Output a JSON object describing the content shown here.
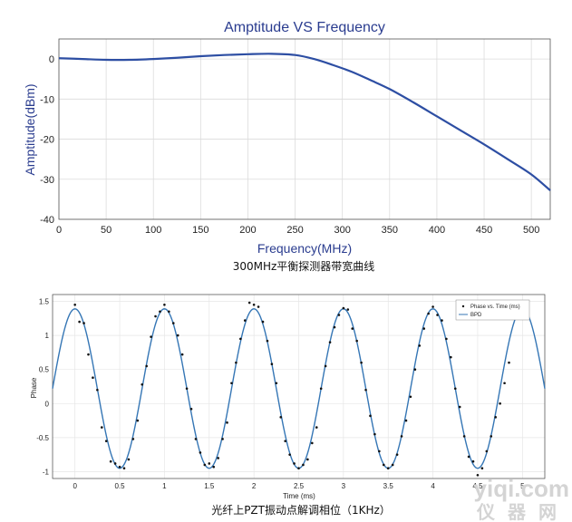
{
  "chart_data": [
    {
      "type": "line",
      "title": "Amptitude VS Frequency",
      "xlabel": "Frequency(MHz)",
      "ylabel": "Amptitude(dBm)",
      "xlim": [
        0,
        520
      ],
      "ylim": [
        -40,
        5
      ],
      "grid": true,
      "x_ticks": [
        "0",
        "50",
        "100",
        "150",
        "200",
        "250",
        "300",
        "350",
        "400",
        "450",
        "500"
      ],
      "y_ticks": [
        "0",
        "-10",
        "-20",
        "-30",
        "-40"
      ],
      "series": [
        {
          "color": "#2d4ea3",
          "x": [
            0,
            25,
            50,
            75,
            100,
            125,
            150,
            175,
            200,
            225,
            250,
            270,
            290,
            310,
            330,
            350,
            375,
            400,
            425,
            450,
            475,
            500,
            520
          ],
          "y": [
            0.2,
            0.0,
            -0.2,
            -0.2,
            0.0,
            0.3,
            0.7,
            1.0,
            1.2,
            1.3,
            1.0,
            0.0,
            -1.5,
            -3.2,
            -5.3,
            -7.5,
            -10.8,
            -14.3,
            -17.8,
            -21.3,
            -25.0,
            -28.8,
            -32.8
          ]
        }
      ],
      "caption": "300MHz平衡探测器带宽曲线"
    },
    {
      "type": "scatter",
      "xlabel": "Time (ms)",
      "ylabel": "Phase",
      "xlim": [
        -0.25,
        5.25
      ],
      "ylim": [
        -1.1,
        1.6
      ],
      "grid": true,
      "x_ticks": [
        "0",
        "0.5",
        "1",
        "1.5",
        "2",
        "2.5",
        "3",
        "3.5",
        "4",
        "4.5",
        "5"
      ],
      "y_ticks": [
        "1.5",
        "1",
        "0.5",
        "0",
        "-0.5",
        "-1"
      ],
      "legend": {
        "placement": "top-right",
        "entries": [
          "Phase vs. Time (ms)",
          "BPD"
        ]
      },
      "series": [
        {
          "name": "Phase vs. Time (ms)",
          "color": "#111111",
          "x": [
            0.0,
            0.05,
            0.1,
            0.15,
            0.2,
            0.25,
            0.3,
            0.35,
            0.4,
            0.45,
            0.5,
            0.55,
            0.6,
            0.65,
            0.7,
            0.75,
            0.8,
            0.85,
            0.9,
            0.95,
            1.0,
            1.05,
            1.1,
            1.15,
            1.2,
            1.25,
            1.3,
            1.35,
            1.4,
            1.45,
            1.5,
            1.55,
            1.6,
            1.65,
            1.7,
            1.75,
            1.8,
            1.85,
            1.9,
            1.95,
            2.0,
            2.05,
            2.1,
            2.15,
            2.2,
            2.25,
            2.3,
            2.35,
            2.4,
            2.45,
            2.5,
            2.55,
            2.6,
            2.65,
            2.7,
            2.75,
            2.8,
            2.85,
            2.9,
            2.95,
            3.0,
            3.05,
            3.1,
            3.15,
            3.2,
            3.25,
            3.3,
            3.35,
            3.4,
            3.45,
            3.5,
            3.55,
            3.6,
            3.65,
            3.7,
            3.75,
            3.8,
            3.85,
            3.9,
            3.95,
            4.0,
            4.05,
            4.1,
            4.15,
            4.2,
            4.25,
            4.3,
            4.35,
            4.4,
            4.45,
            4.5,
            4.55,
            4.6,
            4.65,
            4.7,
            4.75,
            4.8,
            4.85
          ],
          "y": [
            1.45,
            1.2,
            1.18,
            0.72,
            0.38,
            0.2,
            -0.35,
            -0.55,
            -0.85,
            -0.88,
            -0.93,
            -0.95,
            -0.82,
            -0.52,
            -0.25,
            0.28,
            0.55,
            0.98,
            1.28,
            1.35,
            1.45,
            1.35,
            1.18,
            1.0,
            0.72,
            0.22,
            -0.08,
            -0.52,
            -0.72,
            -0.9,
            -0.88,
            -0.93,
            -0.8,
            -0.52,
            -0.28,
            0.3,
            0.6,
            0.95,
            1.22,
            1.48,
            1.45,
            1.42,
            1.2,
            0.92,
            0.58,
            0.3,
            -0.2,
            -0.55,
            -0.75,
            -0.88,
            -0.95,
            -0.9,
            -0.82,
            -0.58,
            -0.35,
            0.22,
            0.55,
            0.9,
            1.12,
            1.3,
            1.4,
            1.38,
            1.1,
            0.92,
            0.6,
            0.2,
            -0.18,
            -0.45,
            -0.7,
            -0.9,
            -0.95,
            -0.9,
            -0.75,
            -0.48,
            -0.25,
            0.1,
            0.5,
            0.85,
            1.1,
            1.32,
            1.42,
            1.3,
            1.22,
            0.95,
            0.68,
            0.22,
            -0.05,
            -0.48,
            -0.78,
            -0.85,
            -1.05,
            -0.95,
            -0.7,
            -0.48,
            -0.2,
            0.0,
            0.3,
            0.6
          ]
        },
        {
          "name": "BPD",
          "color": "#3576b5",
          "amplitude": 1.17,
          "offset": 0.22,
          "period_ms": 1.0,
          "peak_at_ms": 0.0
        }
      ],
      "caption": "光纤上PZT振动点解调相位（1KHz）"
    }
  ],
  "watermark": {
    "site": "yiqi.com",
    "brand": "仪器网"
  }
}
